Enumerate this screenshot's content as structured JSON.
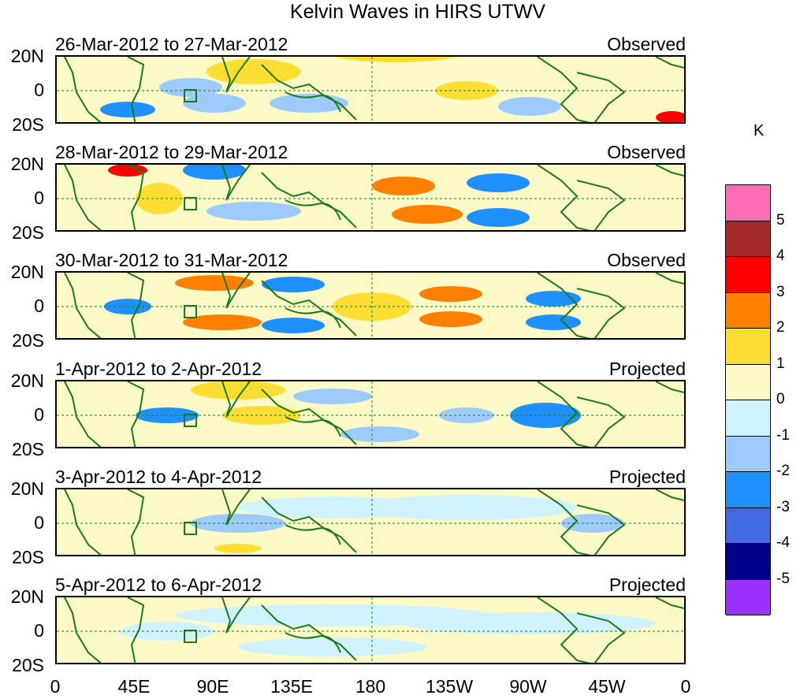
{
  "title": "Kelvin Waves in HIRS UTWV",
  "panels": [
    {
      "date": "26-Mar-2012 to 27-Mar-2012",
      "status": "Observed"
    },
    {
      "date": "28-Mar-2012 to 29-Mar-2012",
      "status": "Observed"
    },
    {
      "date": "30-Mar-2012 to 31-Mar-2012",
      "status": "Observed"
    },
    {
      "date": "1-Apr-2012 to 2-Apr-2012",
      "status": "Projected"
    },
    {
      "date": "3-Apr-2012 to 4-Apr-2012",
      "status": "Projected"
    },
    {
      "date": "5-Apr-2012 to 6-Apr-2012",
      "status": "Projected"
    }
  ],
  "lat_labels": {
    "north": "20N",
    "equator": "0",
    "south": "20S"
  },
  "lon_labels": [
    "0",
    "45E",
    "90E",
    "135E",
    "180",
    "135W",
    "90W",
    "45W",
    "0"
  ],
  "legend": {
    "unit": "K",
    "labels": [
      "5",
      "4",
      "3",
      "2",
      "1",
      "0",
      "-1",
      "-2",
      "-3",
      "-4",
      "-5"
    ],
    "colors": [
      "#ff6eb4",
      "#a52a2a",
      "#ff0000",
      "#ff7f00",
      "#ffdd33",
      "#fdfac8",
      "#d0f2ff",
      "#9ecbff",
      "#1e90ff",
      "#4169e1",
      "#00008b",
      "#9b30ff"
    ]
  }
}
